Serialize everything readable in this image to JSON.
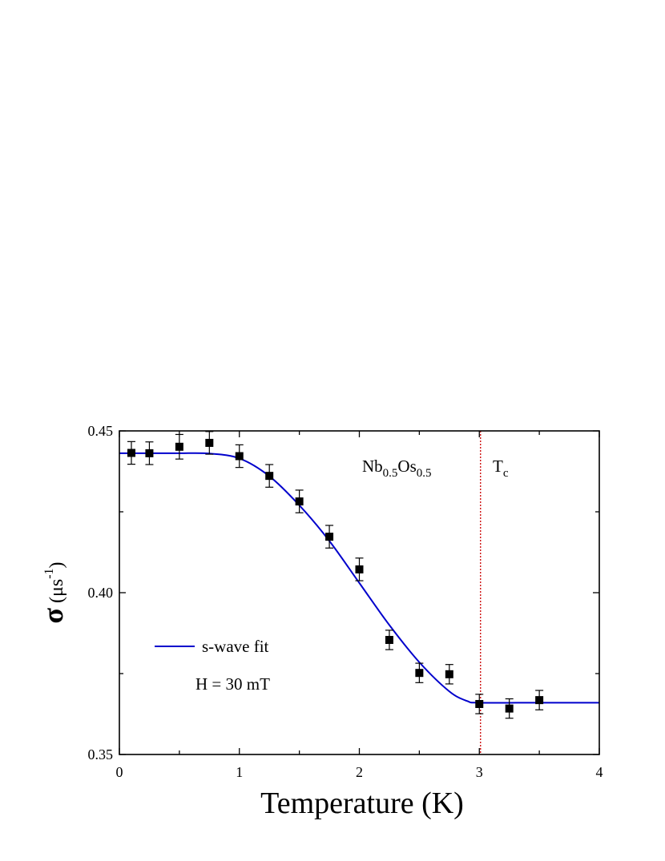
{
  "chart_data": {
    "type": "scatter",
    "xlabel": "Temperature (K)",
    "ylabel": {
      "sigma": "σ",
      "unit_open": " (μs",
      "exp": "-1",
      "unit_close": ")"
    },
    "xlim": [
      0,
      4
    ],
    "ylim": [
      0.35,
      0.45
    ],
    "xticks": [
      0,
      1,
      2,
      3,
      4
    ],
    "xtick_labels": [
      "0",
      "1",
      "2",
      "3",
      "4"
    ],
    "yticks": [
      0.35,
      0.4,
      0.45
    ],
    "ytick_labels": [
      "0.35",
      "0.40",
      "0.45"
    ],
    "grid": false,
    "legend_position": "left",
    "legend": {
      "fit_label": "s-wave fit"
    },
    "annotations": {
      "field": "H = 30 mT",
      "compound": {
        "nb": "Nb",
        "nb_sub": "0.5",
        "os": "Os",
        "os_sub": "0.5"
      },
      "tc": {
        "main": "T",
        "sub": "c"
      }
    },
    "tc_value": 3.01,
    "series": [
      {
        "marker": "square",
        "color": "#000000",
        "x": [
          0.1,
          0.25,
          0.5,
          0.75,
          1.0,
          1.25,
          1.5,
          1.75,
          2.0,
          2.25,
          2.5,
          2.75,
          3.0,
          3.25,
          3.5
        ],
        "y": [
          0.4432,
          0.4431,
          0.4451,
          0.4463,
          0.4422,
          0.4361,
          0.4282,
          0.4173,
          0.4072,
          0.3854,
          0.3752,
          0.3748,
          0.3656,
          0.3642,
          0.3668
        ],
        "err": [
          0.0035,
          0.0035,
          0.0038,
          0.0035,
          0.0035,
          0.0035,
          0.0035,
          0.0035,
          0.0035,
          0.003,
          0.003,
          0.003,
          0.003,
          0.003,
          0.003
        ]
      },
      {
        "name": "s-wave fit",
        "type": "line",
        "color": "#0000cc",
        "x": [
          0,
          0.25,
          0.5,
          0.75,
          1.0,
          1.25,
          1.5,
          1.75,
          2.0,
          2.25,
          2.5,
          2.75,
          2.9,
          3.0,
          3.5,
          4.0
        ],
        "y": [
          0.4431,
          0.4431,
          0.4431,
          0.443,
          0.4415,
          0.436,
          0.427,
          0.416,
          0.403,
          0.39,
          0.3785,
          0.3695,
          0.3665,
          0.366,
          0.366,
          0.366
        ]
      }
    ],
    "colors": {
      "axis": "#000000",
      "fit": "#0000cc",
      "tc_line": "#cc0000",
      "points": "#000000"
    }
  }
}
